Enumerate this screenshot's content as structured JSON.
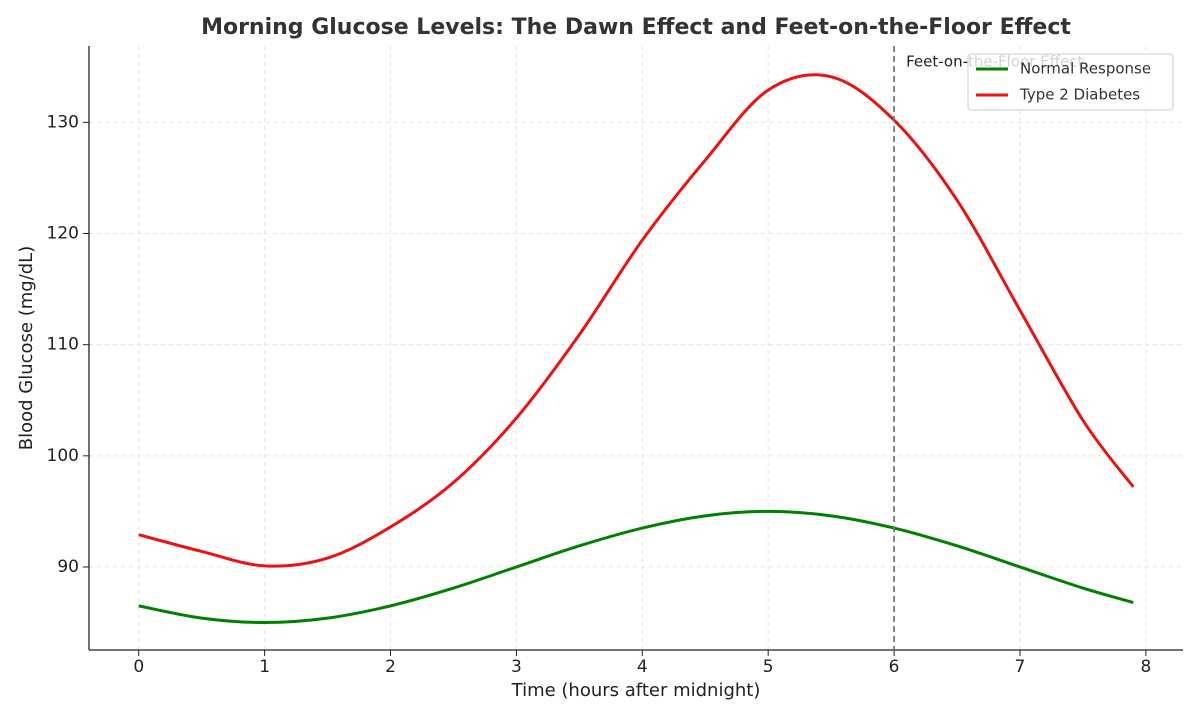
{
  "chart_data": {
    "type": "line",
    "title": "Morning Glucose Levels: The Dawn Effect and Feet-on-the-Floor Effect",
    "x_label": "Time (hours after midnight)",
    "y_label": "Blood Glucose (mg/dL)",
    "x": [
      0,
      0.5,
      1,
      1.5,
      2,
      2.5,
      3,
      3.5,
      4,
      4.5,
      5,
      5.5,
      6,
      6.5,
      7,
      7.5,
      7.9
    ],
    "series": [
      {
        "name": "Normal Response",
        "color": "#008000",
        "values": [
          86.5,
          85.4,
          85,
          85.4,
          86.5,
          88.1,
          90,
          91.9,
          93.5,
          94.6,
          95,
          94.6,
          93.5,
          91.9,
          90,
          88.1,
          86.8
        ]
      },
      {
        "name": "Type 2 Diabetes",
        "color": "#ee1111",
        "values": [
          92.9,
          91.4,
          90.1,
          90.8,
          93.6,
          97.6,
          103.4,
          110.9,
          119.4,
          126.6,
          132.9,
          134.1,
          130.2,
          123.0,
          113.1,
          103.2,
          97.2
        ]
      }
    ],
    "xlim": [
      -0.395,
      8.295
    ],
    "ylim": [
      82.53,
      136.87
    ],
    "xticks": [
      0,
      1,
      2,
      3,
      4,
      5,
      6,
      7,
      8
    ],
    "yticks": [
      90,
      100,
      110,
      120,
      130
    ],
    "grid": true,
    "legend": "upper-right",
    "annotation": {
      "x": 6,
      "label": "Feet-on-the-Floor Effect",
      "color": "#777777"
    }
  }
}
